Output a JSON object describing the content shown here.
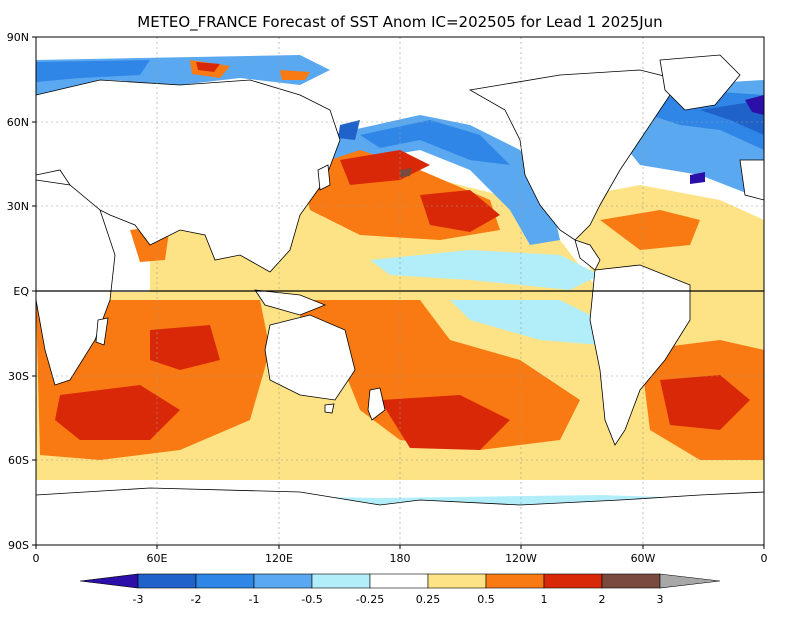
{
  "title": "METEO_FRANCE Forecast of SST Anom IC=202505 for Lead 1 2025Jun",
  "lat_labels": [
    "90N",
    "60N",
    "30N",
    "EQ",
    "30S",
    "60S",
    "90S"
  ],
  "lon_labels": [
    "0",
    "60E",
    "120E",
    "180",
    "120W",
    "60W",
    "0"
  ],
  "colorbar": {
    "labels": [
      "-3",
      "-2",
      "-1",
      "-0.5",
      "-0.25",
      "0.25",
      "0.5",
      "1",
      "2",
      "3"
    ],
    "colors": {
      "lt_neg3": "#2b0fa8",
      "neg3_neg2": "#1f62c9",
      "neg2_neg1": "#2f86e6",
      "neg1_neg05": "#5aa8ef",
      "neg05_neg025": "#b2eefa",
      "neutral": "#ffffff",
      "pos025_pos05": "#fde385",
      "pos05_pos1": "#f97a12",
      "pos1_pos2": "#d92808",
      "pos2_pos3": "#7a4a3e",
      "gt_pos3": "#a8a8a8"
    }
  }
}
